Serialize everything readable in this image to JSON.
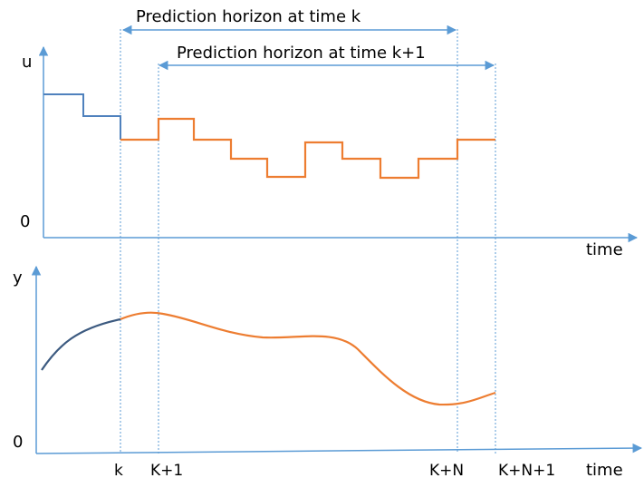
{
  "horizon_k_label": "Prediction horizon at time k",
  "horizon_k1_label": "Prediction horizon at time k+1",
  "top_plot": {
    "y_axis_label": "u",
    "y_zero_label": "0",
    "x_axis_label": "time"
  },
  "bottom_plot": {
    "y_axis_label": "y",
    "y_zero_label": "0",
    "x_axis_label": "time"
  },
  "time_ticks": [
    "k",
    "K+1",
    "K+N",
    "K+N+1"
  ],
  "colors": {
    "axis": "#5b9bd5",
    "past": "#4f81bd",
    "past_output": "#3c5a80",
    "predicted": "#ed7d31",
    "guides": "#5b9bd5"
  }
}
